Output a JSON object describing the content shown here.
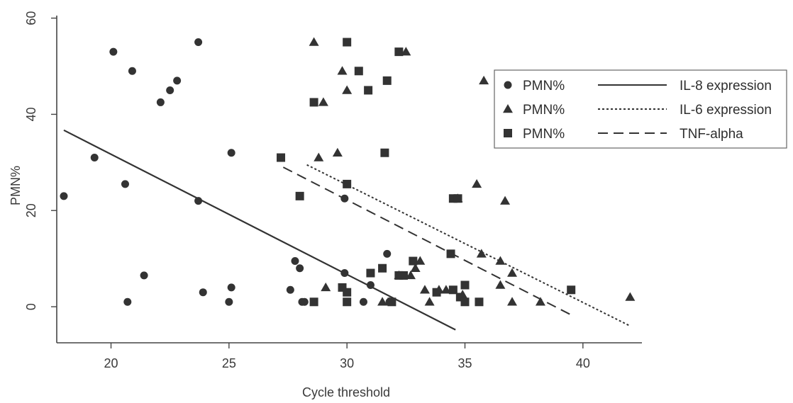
{
  "chart_data": {
    "type": "scatter",
    "title": "",
    "xlabel": "Cycle threshold",
    "ylabel": "PMN%",
    "xlim": [
      17.7,
      42.5
    ],
    "ylim": [
      -7.5,
      62
    ],
    "x_ticks": [
      20,
      25,
      30,
      35,
      40
    ],
    "x_tick_labels": [
      "20",
      "25",
      "30",
      "35",
      "40"
    ],
    "y_ticks": [
      0,
      20,
      40,
      60
    ],
    "y_tick_labels": [
      "0",
      "20",
      "40",
      "60"
    ],
    "grid": false,
    "legend_position": "top-right",
    "colors": {
      "ink": "#333333",
      "axis": "#444444"
    },
    "legend": [
      {
        "marker": "circle",
        "marker_label": "PMN%",
        "line_style": "solid",
        "line_label": "IL-8 expression"
      },
      {
        "marker": "triangle",
        "marker_label": "PMN%",
        "line_style": "dotted",
        "line_label": "IL-6 expression"
      },
      {
        "marker": "square",
        "marker_label": "PMN%",
        "line_style": "dashed",
        "line_label": "TNF-alpha"
      }
    ],
    "series": [
      {
        "marker": "circle",
        "points": [
          [
            18.0,
            23
          ],
          [
            19.3,
            31
          ],
          [
            20.1,
            53
          ],
          [
            20.6,
            25.5
          ],
          [
            20.7,
            1
          ],
          [
            20.9,
            49
          ],
          [
            21.4,
            6.5
          ],
          [
            22.1,
            42.5
          ],
          [
            22.5,
            45
          ],
          [
            22.8,
            47
          ],
          [
            23.7,
            55
          ],
          [
            23.7,
            22
          ],
          [
            23.9,
            3
          ],
          [
            25.0,
            1
          ],
          [
            25.1,
            4
          ],
          [
            25.1,
            32
          ],
          [
            27.6,
            3.5
          ],
          [
            27.8,
            9.5
          ],
          [
            28.0,
            8
          ],
          [
            28.1,
            1
          ],
          [
            28.2,
            1
          ],
          [
            29.9,
            22.5
          ],
          [
            29.9,
            7
          ],
          [
            30.7,
            1
          ],
          [
            31.0,
            4.5
          ],
          [
            31.7,
            11
          ],
          [
            31.8,
            1
          ]
        ]
      },
      {
        "marker": "triangle",
        "points": [
          [
            28.6,
            55
          ],
          [
            28.8,
            31
          ],
          [
            29.0,
            42.5
          ],
          [
            29.1,
            4
          ],
          [
            29.6,
            32
          ],
          [
            29.8,
            49
          ],
          [
            30.0,
            45
          ],
          [
            31.5,
            1
          ],
          [
            31.8,
            1
          ],
          [
            32.2,
            6.5
          ],
          [
            32.5,
            53
          ],
          [
            32.7,
            6.5
          ],
          [
            32.9,
            8
          ],
          [
            33.1,
            9.5
          ],
          [
            33.3,
            3.5
          ],
          [
            33.5,
            1
          ],
          [
            33.9,
            3.5
          ],
          [
            34.2,
            3.5
          ],
          [
            34.7,
            22.5
          ],
          [
            34.9,
            2.5
          ],
          [
            35.5,
            25.5
          ],
          [
            35.7,
            11
          ],
          [
            35.8,
            47
          ],
          [
            36.5,
            9.5
          ],
          [
            36.5,
            4.5
          ],
          [
            36.7,
            22
          ],
          [
            37.0,
            7
          ],
          [
            37.0,
            1
          ],
          [
            38.2,
            1
          ],
          [
            42.0,
            2
          ]
        ]
      },
      {
        "marker": "square",
        "points": [
          [
            27.2,
            31
          ],
          [
            28.0,
            23
          ],
          [
            28.6,
            42.5
          ],
          [
            28.6,
            1
          ],
          [
            29.8,
            4
          ],
          [
            30.0,
            55
          ],
          [
            30.0,
            25.5
          ],
          [
            30.0,
            3
          ],
          [
            30.0,
            1
          ],
          [
            30.5,
            49
          ],
          [
            30.9,
            45
          ],
          [
            31.0,
            7
          ],
          [
            31.5,
            8
          ],
          [
            31.6,
            32
          ],
          [
            31.7,
            47
          ],
          [
            31.9,
            1
          ],
          [
            32.2,
            53
          ],
          [
            32.2,
            6.5
          ],
          [
            32.4,
            6.5
          ],
          [
            32.8,
            9.5
          ],
          [
            33.8,
            3
          ],
          [
            34.4,
            11
          ],
          [
            34.5,
            3.5
          ],
          [
            34.5,
            22.5
          ],
          [
            34.7,
            22.5
          ],
          [
            34.8,
            2
          ],
          [
            35.0,
            4.5
          ],
          [
            35.0,
            1
          ],
          [
            35.6,
            1
          ],
          [
            39.5,
            3.5
          ]
        ]
      }
    ],
    "fit_lines": [
      {
        "style": "solid",
        "label": "IL-8 expression",
        "x": [
          18.0,
          34.6
        ],
        "y": [
          36.7,
          -4.8
        ]
      },
      {
        "style": "dotted",
        "label": "IL-6 expression",
        "x": [
          28.3,
          42.0
        ],
        "y": [
          29.5,
          -4.0
        ]
      },
      {
        "style": "dashed",
        "label": "TNF-alpha",
        "x": [
          27.3,
          39.5
        ],
        "y": [
          29.0,
          -1.7
        ]
      }
    ]
  }
}
